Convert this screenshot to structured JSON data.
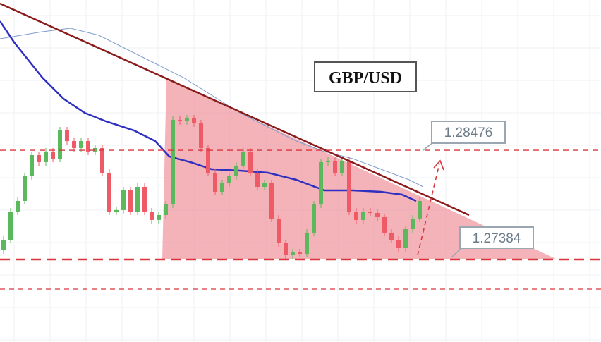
{
  "chart_data": {
    "type": "candlestick",
    "title": "GBP/USD",
    "open": [
      1.27476,
      1.27581,
      1.27863,
      1.27969,
      1.28216,
      1.28427,
      1.28357,
      1.28463,
      1.28392,
      1.28674,
      1.28568,
      1.28498,
      1.28568,
      1.28463,
      1.28498,
      1.28251,
      1.27863,
      1.27878,
      1.28075,
      1.27863,
      1.2811,
      1.27863,
      1.27779,
      1.27828,
      1.27934,
      1.2878,
      1.28766,
      1.28794,
      1.28745,
      1.28498,
      1.28251,
      1.28061,
      1.28145,
      1.28216,
      1.28322,
      1.28463,
      1.28251,
      1.2811,
      1.28145,
      1.27793,
      1.27546,
      1.27426,
      1.27455,
      1.2744,
      1.27652,
      1.27934,
      1.28357,
      1.28371,
      1.28251,
      1.28371,
      1.27863,
      1.27779,
      1.27863,
      1.27849,
      1.27807,
      1.27652,
      1.27581,
      1.27497,
      1.27687,
      1.27793
    ],
    "close": [
      1.27581,
      1.27863,
      1.27969,
      1.28216,
      1.28427,
      1.28357,
      1.28463,
      1.28392,
      1.28674,
      1.28568,
      1.28498,
      1.28568,
      1.28463,
      1.28498,
      1.28251,
      1.27863,
      1.27878,
      1.28075,
      1.27863,
      1.2811,
      1.27863,
      1.27779,
      1.27828,
      1.27934,
      1.2878,
      1.28766,
      1.28794,
      1.28745,
      1.28498,
      1.28251,
      1.28061,
      1.28145,
      1.28216,
      1.28322,
      1.28463,
      1.28251,
      1.2811,
      1.28145,
      1.27793,
      1.27546,
      1.27426,
      1.27455,
      1.2744,
      1.27652,
      1.27934,
      1.28357,
      1.28371,
      1.28251,
      1.28371,
      1.27863,
      1.27779,
      1.27863,
      1.27849,
      1.27807,
      1.27652,
      1.27581,
      1.27497,
      1.27687,
      1.27793,
      1.27969
    ],
    "up_color": "#5cb85c",
    "down_color": "#ef5a67",
    "levels": [
      1.28476,
      1.27384
    ],
    "level_color": "#d9363e",
    "ylim": [
      1.26559,
      1.29978
    ],
    "grid": true
  }
}
